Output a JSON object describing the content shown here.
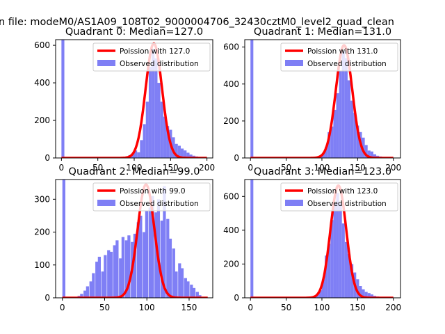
{
  "figure": {
    "suptitle": "n file: modeM0/AS1A09_108T02_9000004706_32430cztM0_level2_quad_clean"
  },
  "colors": {
    "hist": "#7f7ff5",
    "poisson": "#ff0000",
    "legend_border": "#cccccc"
  },
  "chart_data": [
    {
      "type": "bar+line",
      "title": "Quadrant 0: Median=127.0",
      "xlim": [
        -8,
        208
      ],
      "ylim": [
        0,
        630
      ],
      "xticks": [
        0,
        50,
        100,
        150,
        200
      ],
      "yticks": [
        0,
        200,
        400,
        600
      ],
      "bin_width": 4,
      "legend_position": "top-right",
      "line_label": "Poission with 127.0",
      "hist_label": "Observed distribution",
      "histogram": [
        {
          "x": 0,
          "y": 630
        },
        {
          "x": 88,
          "y": 8
        },
        {
          "x": 92,
          "y": 15
        },
        {
          "x": 96,
          "y": 22
        },
        {
          "x": 100,
          "y": 40
        },
        {
          "x": 104,
          "y": 30
        },
        {
          "x": 108,
          "y": 95
        },
        {
          "x": 112,
          "y": 180
        },
        {
          "x": 116,
          "y": 300
        },
        {
          "x": 120,
          "y": 485
        },
        {
          "x": 124,
          "y": 580
        },
        {
          "x": 128,
          "y": 530
        },
        {
          "x": 132,
          "y": 400
        },
        {
          "x": 136,
          "y": 300
        },
        {
          "x": 140,
          "y": 220
        },
        {
          "x": 144,
          "y": 170
        },
        {
          "x": 148,
          "y": 150
        },
        {
          "x": 152,
          "y": 110
        },
        {
          "x": 156,
          "y": 75
        },
        {
          "x": 160,
          "y": 65
        },
        {
          "x": 164,
          "y": 50
        },
        {
          "x": 168,
          "y": 40
        },
        {
          "x": 172,
          "y": 28
        },
        {
          "x": 176,
          "y": 18
        },
        {
          "x": 180,
          "y": 12
        },
        {
          "x": 184,
          "y": 8
        },
        {
          "x": 188,
          "y": 5
        },
        {
          "x": 192,
          "y": 3
        },
        {
          "x": 196,
          "y": 2
        }
      ],
      "poisson": {
        "lambda": 127.0,
        "peak": 610,
        "x_range": [
          0,
          200
        ]
      }
    },
    {
      "type": "bar+line",
      "title": "Quadrant 1: Median=131.0",
      "xlim": [
        -8,
        210
      ],
      "ylim": [
        0,
        640
      ],
      "xticks": [
        0,
        50,
        100,
        150,
        200
      ],
      "yticks": [
        0,
        200,
        400,
        600
      ],
      "bin_width": 4,
      "legend_position": "top-right",
      "line_label": "Poission with 131.0",
      "hist_label": "Observed distribution",
      "histogram": [
        {
          "x": 0,
          "y": 640
        },
        {
          "x": 92,
          "y": 4
        },
        {
          "x": 96,
          "y": 10
        },
        {
          "x": 100,
          "y": 25
        },
        {
          "x": 104,
          "y": 60
        },
        {
          "x": 108,
          "y": 140
        },
        {
          "x": 112,
          "y": 170
        },
        {
          "x": 116,
          "y": 260
        },
        {
          "x": 120,
          "y": 350
        },
        {
          "x": 124,
          "y": 470
        },
        {
          "x": 128,
          "y": 580
        },
        {
          "x": 132,
          "y": 540
        },
        {
          "x": 136,
          "y": 420
        },
        {
          "x": 140,
          "y": 310
        },
        {
          "x": 144,
          "y": 245
        },
        {
          "x": 148,
          "y": 175
        },
        {
          "x": 152,
          "y": 140
        },
        {
          "x": 156,
          "y": 110
        },
        {
          "x": 160,
          "y": 70
        },
        {
          "x": 164,
          "y": 40
        },
        {
          "x": 168,
          "y": 35
        },
        {
          "x": 172,
          "y": 20
        },
        {
          "x": 176,
          "y": 12
        },
        {
          "x": 180,
          "y": 8
        },
        {
          "x": 184,
          "y": 5
        },
        {
          "x": 188,
          "y": 3
        }
      ],
      "poisson": {
        "lambda": 131.0,
        "peak": 610,
        "x_range": [
          0,
          200
        ]
      }
    },
    {
      "type": "bar+line",
      "title": "Quadrant 2: Median=99.0",
      "xlim": [
        -8,
        178
      ],
      "ylim": [
        0,
        360
      ],
      "xticks": [
        0,
        50,
        100,
        150
      ],
      "yticks": [
        0,
        100,
        200,
        300
      ],
      "bin_width": 3.5,
      "legend_position": "top-right",
      "line_label": "Poission with 99.0",
      "hist_label": "Observed distribution",
      "histogram": [
        {
          "x": 0,
          "y": 360
        },
        {
          "x": 14,
          "y": 3
        },
        {
          "x": 18,
          "y": 6
        },
        {
          "x": 21,
          "y": 12
        },
        {
          "x": 25,
          "y": 22
        },
        {
          "x": 28,
          "y": 35
        },
        {
          "x": 32,
          "y": 50
        },
        {
          "x": 35,
          "y": 75
        },
        {
          "x": 39,
          "y": 110
        },
        {
          "x": 42,
          "y": 125
        },
        {
          "x": 46,
          "y": 80
        },
        {
          "x": 49,
          "y": 130
        },
        {
          "x": 53,
          "y": 145
        },
        {
          "x": 56,
          "y": 140
        },
        {
          "x": 60,
          "y": 160
        },
        {
          "x": 63,
          "y": 175
        },
        {
          "x": 67,
          "y": 120
        },
        {
          "x": 70,
          "y": 185
        },
        {
          "x": 74,
          "y": 175
        },
        {
          "x": 77,
          "y": 190
        },
        {
          "x": 81,
          "y": 170
        },
        {
          "x": 84,
          "y": 195
        },
        {
          "x": 88,
          "y": 230
        },
        {
          "x": 91,
          "y": 250
        },
        {
          "x": 95,
          "y": 200
        },
        {
          "x": 98,
          "y": 265
        },
        {
          "x": 102,
          "y": 275
        },
        {
          "x": 105,
          "y": 310
        },
        {
          "x": 109,
          "y": 260
        },
        {
          "x": 112,
          "y": 300
        },
        {
          "x": 116,
          "y": 235
        },
        {
          "x": 119,
          "y": 340
        },
        {
          "x": 123,
          "y": 240
        },
        {
          "x": 126,
          "y": 180
        },
        {
          "x": 130,
          "y": 150
        },
        {
          "x": 133,
          "y": 80
        },
        {
          "x": 137,
          "y": 105
        },
        {
          "x": 140,
          "y": 90
        },
        {
          "x": 144,
          "y": 60
        },
        {
          "x": 147,
          "y": 50
        },
        {
          "x": 151,
          "y": 40
        },
        {
          "x": 154,
          "y": 30
        },
        {
          "x": 158,
          "y": 18
        },
        {
          "x": 161,
          "y": 8
        }
      ],
      "poisson": {
        "lambda": 99.0,
        "peak": 345,
        "x_range": [
          0,
          172
        ]
      }
    },
    {
      "type": "bar+line",
      "title": "Quadrant 3: Median=123.0",
      "xlim": [
        -8,
        210
      ],
      "ylim": [
        0,
        700
      ],
      "xticks": [
        0,
        50,
        100,
        150,
        200
      ],
      "yticks": [
        0,
        200,
        400,
        600
      ],
      "bin_width": 4,
      "legend_position": "top-right",
      "line_label": "Poission with 123.0",
      "hist_label": "Observed distribution",
      "histogram": [
        {
          "x": 0,
          "y": 700
        },
        {
          "x": 84,
          "y": 3
        },
        {
          "x": 88,
          "y": 8
        },
        {
          "x": 92,
          "y": 20
        },
        {
          "x": 96,
          "y": 45
        },
        {
          "x": 100,
          "y": 110
        },
        {
          "x": 104,
          "y": 250
        },
        {
          "x": 108,
          "y": 320
        },
        {
          "x": 112,
          "y": 460
        },
        {
          "x": 116,
          "y": 560
        },
        {
          "x": 120,
          "y": 620
        },
        {
          "x": 124,
          "y": 560
        },
        {
          "x": 128,
          "y": 440
        },
        {
          "x": 132,
          "y": 330
        },
        {
          "x": 136,
          "y": 260
        },
        {
          "x": 140,
          "y": 200
        },
        {
          "x": 144,
          "y": 150
        },
        {
          "x": 148,
          "y": 110
        },
        {
          "x": 152,
          "y": 70
        },
        {
          "x": 156,
          "y": 50
        },
        {
          "x": 160,
          "y": 35
        },
        {
          "x": 164,
          "y": 28
        },
        {
          "x": 168,
          "y": 20
        },
        {
          "x": 172,
          "y": 12
        },
        {
          "x": 176,
          "y": 8
        },
        {
          "x": 180,
          "y": 5
        }
      ],
      "poisson": {
        "lambda": 123.0,
        "peak": 665,
        "x_range": [
          0,
          200
        ]
      }
    }
  ]
}
